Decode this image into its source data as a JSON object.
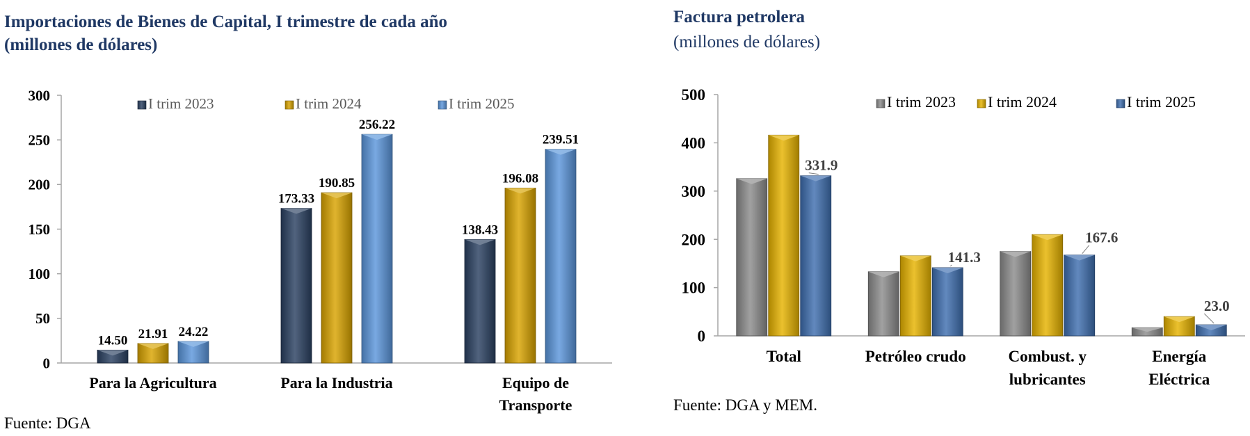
{
  "colors": {
    "title": "#1f3864",
    "left_series": [
      "#2b4162",
      "#d9a400",
      "#5b96dc"
    ],
    "right_series": [
      "#8c8c8c",
      "#e6b300",
      "#3f6fb0"
    ]
  },
  "left": {
    "title_line1": "Importaciones de Bienes de Capital,  I trimestre de cada año",
    "title_line2": "(millones de dólares)",
    "source": "Fuente: DGA"
  },
  "right": {
    "title": "Factura petrolera",
    "subtitle": "(millones de dólares)",
    "source": "Fuente: DGA y MEM."
  },
  "chart_data": [
    {
      "type": "bar",
      "title": "Importaciones de Bienes de Capital,  I trimestre de cada año (millones de dólares)",
      "categories": [
        [
          "Para la Agricultura"
        ],
        [
          "Para la Industria"
        ],
        [
          "Equipo de",
          "Transporte"
        ]
      ],
      "series": [
        {
          "name": "I trim 2023",
          "values": [
            14.5,
            173.33,
            138.43
          ],
          "labels": [
            "14.50",
            "173.33",
            "138.43"
          ]
        },
        {
          "name": "I trim 2024",
          "values": [
            21.91,
            190.85,
            196.08
          ],
          "labels": [
            "21.91",
            "190.85",
            "196.08"
          ]
        },
        {
          "name": "I trim 2025",
          "values": [
            24.22,
            256.22,
            239.51
          ],
          "labels": [
            "24.22",
            "256.22",
            "239.51"
          ]
        }
      ],
      "ylim": [
        0,
        300
      ],
      "yticks": [
        0,
        50,
        100,
        150,
        200,
        250,
        300
      ],
      "grid": false,
      "legend": "top"
    },
    {
      "type": "bar",
      "title": "Factura petrolera (millones de dólares)",
      "categories": [
        [
          "Total"
        ],
        [
          "Petróleo crudo"
        ],
        [
          "Combust. y",
          "lubricantes"
        ],
        [
          "Energía",
          "Eléctrica"
        ]
      ],
      "series": [
        {
          "name": "I trim 2023",
          "values": [
            326,
            133,
            175,
            17
          ],
          "labels": null
        },
        {
          "name": "I trim 2024",
          "values": [
            416,
            166,
            210,
            40
          ],
          "labels": null
        },
        {
          "name": "I trim 2025",
          "values": [
            331.9,
            141.3,
            167.6,
            23.0
          ],
          "labels": [
            "331.9",
            "141.3",
            "167.6",
            "23.0"
          ]
        }
      ],
      "ylim": [
        0,
        500
      ],
      "yticks": [
        0,
        100,
        200,
        300,
        400,
        500
      ],
      "grid": false,
      "legend": "top"
    }
  ]
}
